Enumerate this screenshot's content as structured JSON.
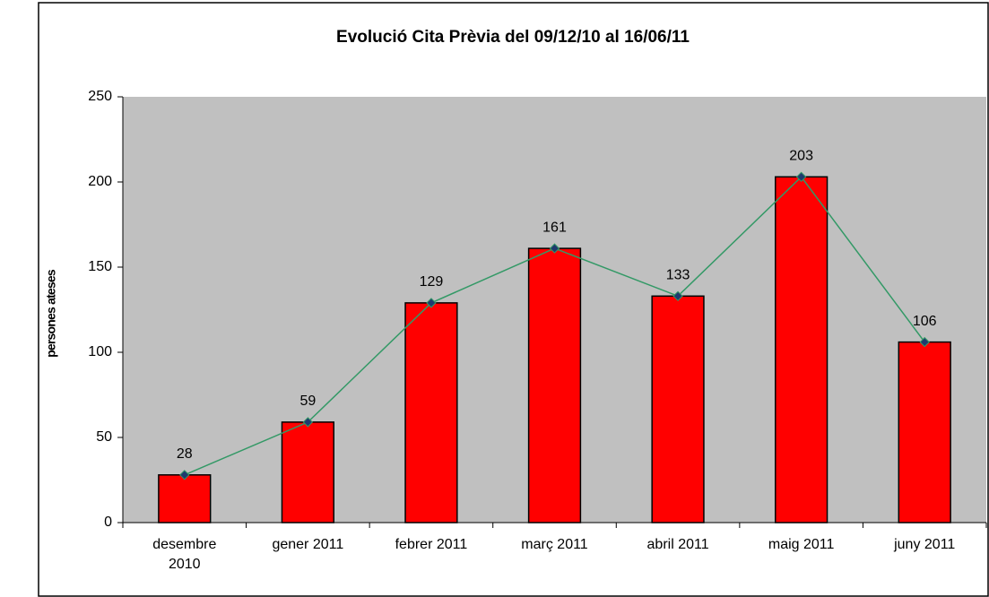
{
  "chart_data": {
    "type": "bar",
    "title": "Evolució Cita Prèvia del 09/12/10 al 16/06/11",
    "y_label": "persones ateses",
    "categories": [
      "desembre 2010",
      "gener 2011",
      "febrer 2011",
      "març 2011",
      "abril 2011",
      "maig 2011",
      "juny 2011"
    ],
    "values": [
      28,
      59,
      129,
      161,
      133,
      203,
      106
    ],
    "color": "#ff0000",
    "overlay": "line",
    "line_color": "#339966",
    "marker_color": "#1f3a6e",
    "ylim": [
      0,
      250
    ],
    "yticks": [
      0,
      50,
      100,
      150,
      200,
      250
    ],
    "grid": false,
    "plot_background": "#c0c0c0"
  }
}
